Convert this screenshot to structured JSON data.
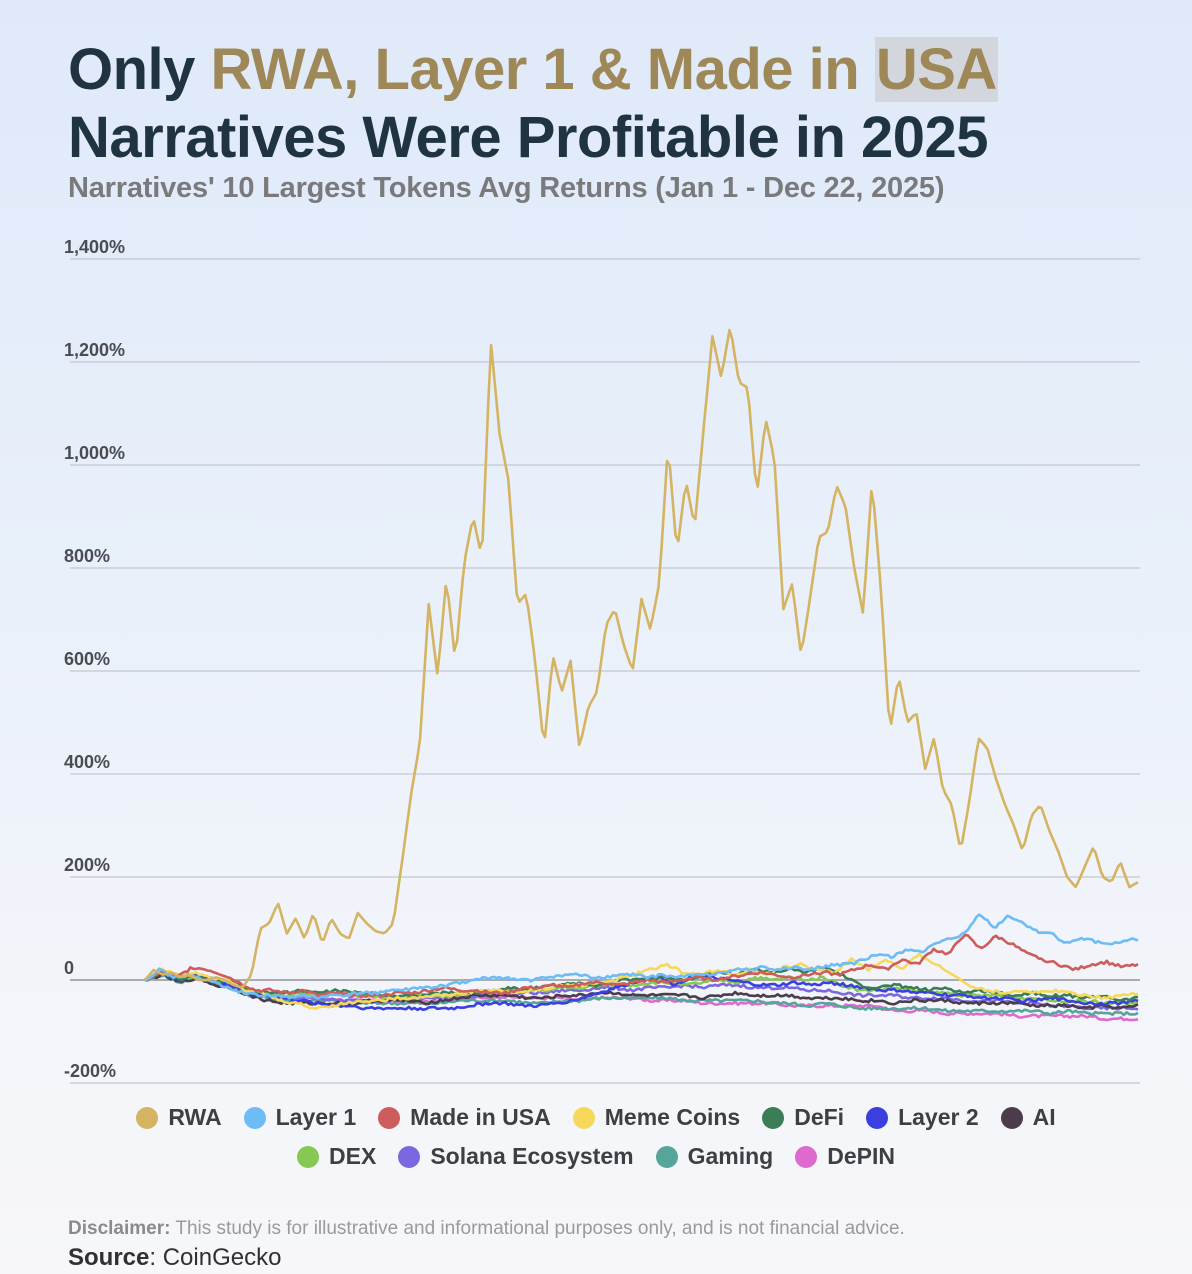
{
  "title": {
    "part1": "Only ",
    "highlight1": "RWA, Layer 1 & Made in ",
    "highlight2": "USA",
    "line2": "Narratives Were Profitable in 2025"
  },
  "subtitle": "Narratives' 10 Largest Tokens Avg Returns (Jan 1 - Dec 22, 2025)",
  "footer": {
    "disclaimer_label": "Disclaimer:",
    "disclaimer_text": " This study is for illustrative and informational purposes only, and is not financial advice.",
    "source_label": "Source",
    "source_text": ": CoinGecko"
  },
  "chart_data": {
    "type": "line",
    "title": "Only RWA, Layer 1 & Made in USA Narratives Were Profitable in 2025",
    "subtitle": "Narratives' 10 Largest Tokens Avg Returns (Jan 1 - Dec 22, 2025)",
    "xlabel": "",
    "ylabel": "",
    "x_range": [
      "Jan 1, 2025",
      "Dec 22, 2025"
    ],
    "ylim": [
      -200,
      1400
    ],
    "yticks": [
      -200,
      0,
      200,
      400,
      600,
      800,
      1000,
      1200,
      1400
    ],
    "ytick_labels": [
      "-200%",
      "0",
      "200%",
      "400%",
      "600%",
      "800%",
      "1,000%",
      "1,200%",
      "1,400%"
    ],
    "grid": true,
    "legend_position": "bottom",
    "series": [
      {
        "name": "RWA",
        "color": "#d4b462",
        "values": [
          0,
          20,
          10,
          15,
          5,
          10,
          0,
          0,
          5,
          0,
          -10,
          -15,
          10,
          100,
          110,
          150,
          90,
          120,
          80,
          130,
          70,
          120,
          90,
          80,
          130,
          110,
          95,
          90,
          110,
          230,
          360,
          460,
          730,
          590,
          780,
          620,
          810,
          900,
          820,
          1240,
          1060,
          970,
          730,
          750,
          620,
          450,
          630,
          560,
          620,
          450,
          530,
          560,
          690,
          720,
          650,
          600,
          740,
          680,
          770,
          1040,
          830,
          970,
          880,
          1070,
          1250,
          1170,
          1270,
          1160,
          1150,
          940,
          1090,
          1010,
          720,
          770,
          630,
          740,
          860,
          870,
          960,
          920,
          800,
          710,
          970,
          760,
          480,
          590,
          500,
          520,
          410,
          470,
          370,
          340,
          250,
          350,
          470,
          450,
          390,
          340,
          300,
          250,
          320,
          340,
          290,
          250,
          200,
          180,
          220,
          260,
          200,
          190,
          230,
          180,
          190
        ]
      },
      {
        "name": "Layer 1",
        "color": "#6ebcf5",
        "values": [
          0,
          20,
          5,
          10,
          0,
          -5,
          -20,
          -25,
          -30,
          -30,
          -35,
          -30,
          -35,
          -30,
          -30,
          -25,
          -25,
          -20,
          -20,
          -15,
          -15,
          -10,
          -5,
          0,
          5,
          5,
          0,
          0,
          5,
          10,
          10,
          5,
          5,
          10,
          10,
          5,
          10,
          5,
          10,
          10,
          15,
          20,
          20,
          25,
          20,
          25,
          20,
          25,
          30,
          30,
          40,
          50,
          45,
          60,
          55,
          70,
          80,
          90,
          130,
          100,
          125,
          110,
          95,
          90,
          70,
          80,
          75,
          70,
          75,
          80
        ]
      },
      {
        "name": "Made in USA",
        "color": "#cd5c5c",
        "values": [
          0,
          15,
          5,
          25,
          20,
          10,
          -5,
          -20,
          -20,
          -25,
          -20,
          -30,
          -25,
          -30,
          -30,
          -30,
          -25,
          -25,
          -20,
          -15,
          -20,
          -20,
          -25,
          -25,
          -15,
          -15,
          -10,
          -15,
          -5,
          -5,
          -10,
          -5,
          0,
          -5,
          0,
          5,
          0,
          5,
          10,
          15,
          10,
          5,
          10,
          15,
          10,
          20,
          30,
          20,
          40,
          30,
          60,
          50,
          90,
          60,
          85,
          70,
          50,
          40,
          30,
          20,
          30,
          35,
          25,
          30
        ]
      },
      {
        "name": "Meme Coins",
        "color": "#f6d95a",
        "values": [
          0,
          20,
          10,
          15,
          5,
          0,
          -20,
          -25,
          -40,
          -45,
          -55,
          -50,
          -45,
          -40,
          -40,
          -35,
          -35,
          -30,
          -30,
          -25,
          -20,
          -20,
          -25,
          -20,
          -15,
          -10,
          -10,
          -5,
          0,
          10,
          20,
          30,
          15,
          10,
          20,
          10,
          20,
          10,
          25,
          30,
          20,
          15,
          40,
          20,
          40,
          20,
          50,
          30,
          10,
          -10,
          -20,
          -25,
          -20,
          -25,
          -20,
          -25,
          -30,
          -35,
          -30,
          -25
        ]
      },
      {
        "name": "DeFi",
        "color": "#3b7d57",
        "values": [
          0,
          15,
          0,
          10,
          0,
          -5,
          -20,
          -25,
          -25,
          -20,
          -25,
          -20,
          -25,
          -25,
          -30,
          -30,
          -30,
          -25,
          -25,
          -25,
          -20,
          -15,
          -20,
          -10,
          -10,
          -5,
          -10,
          0,
          0,
          5,
          5,
          0,
          10,
          15,
          10,
          20,
          15,
          20,
          15,
          25,
          10,
          -10,
          -15,
          -10,
          -15,
          -20,
          -15,
          -25,
          -20,
          -25,
          -30,
          -25,
          -30,
          -30,
          -35,
          -30,
          -40,
          -35
        ]
      },
      {
        "name": "Layer 2",
        "color": "#3b3fe0",
        "values": [
          0,
          15,
          0,
          10,
          -5,
          -10,
          -25,
          -30,
          -35,
          -40,
          -45,
          -50,
          -50,
          -55,
          -55,
          -55,
          -55,
          -55,
          -55,
          -50,
          -45,
          -45,
          -50,
          -50,
          -45,
          -40,
          -30,
          -20,
          -10,
          0,
          5,
          -10,
          10,
          5,
          0,
          -5,
          -10,
          -10,
          -5,
          -10,
          -5,
          -10,
          -15,
          -20,
          -20,
          -25,
          -25,
          -30,
          -30,
          -35,
          -35,
          -40,
          -40,
          -35,
          -40,
          -45,
          -45,
          -45,
          -40
        ]
      },
      {
        "name": "AI",
        "color": "#4a3c4a",
        "values": [
          0,
          10,
          -5,
          5,
          -10,
          -15,
          -30,
          -40,
          -45,
          -45,
          -45,
          -45,
          -45,
          -40,
          -40,
          -40,
          -45,
          -40,
          -35,
          -30,
          -30,
          -30,
          -35,
          -35,
          -30,
          -30,
          -25,
          -25,
          -30,
          -30,
          -30,
          -30,
          -35,
          -30,
          -25,
          -30,
          -30,
          -30,
          -35,
          -35,
          -35,
          -40,
          -40,
          -45,
          -40,
          -40,
          -40,
          -45,
          -45,
          -45,
          -45,
          -50,
          -50,
          -50,
          -55,
          -50,
          -55,
          -50
        ]
      },
      {
        "name": "DEX",
        "color": "#86c952",
        "values": [
          0,
          15,
          0,
          5,
          -5,
          -10,
          -20,
          -25,
          -30,
          -25,
          -30,
          -25,
          -30,
          -30,
          -35,
          -35,
          -30,
          -30,
          -30,
          -25,
          -25,
          -20,
          -20,
          -20,
          -15,
          -15,
          -10,
          -10,
          -10,
          -5,
          -5,
          -10,
          -5,
          0,
          -5,
          5,
          0,
          5,
          0,
          5,
          -10,
          -20,
          -20,
          -15,
          -20,
          -25,
          -25,
          -30,
          -30,
          -30,
          -35,
          -35,
          -40,
          -40,
          -40,
          -45,
          -45,
          -45
        ]
      },
      {
        "name": "Solana Ecosystem",
        "color": "#7b68e0",
        "values": [
          0,
          15,
          0,
          5,
          -5,
          -10,
          -25,
          -30,
          -35,
          -35,
          -35,
          -40,
          -40,
          -40,
          -40,
          -40,
          -35,
          -35,
          -35,
          -30,
          -30,
          -25,
          -25,
          -25,
          -20,
          -20,
          -15,
          -15,
          -20,
          -15,
          -15,
          -10,
          -15,
          -10,
          -10,
          -15,
          -15,
          -15,
          -20,
          -20,
          -25,
          -30,
          -30,
          -30,
          -35,
          -35,
          -35,
          -40,
          -40,
          -40,
          -45,
          -45,
          -50,
          -50,
          -55,
          -55,
          -55,
          -55
        ]
      },
      {
        "name": "Gaming",
        "color": "#56a59a",
        "values": [
          0,
          10,
          -5,
          5,
          -5,
          -15,
          -30,
          -35,
          -40,
          -40,
          -40,
          -40,
          -45,
          -45,
          -45,
          -45,
          -45,
          -45,
          -40,
          -40,
          -40,
          -40,
          -45,
          -45,
          -40,
          -40,
          -35,
          -35,
          -35,
          -35,
          -35,
          -40,
          -40,
          -40,
          -40,
          -40,
          -45,
          -45,
          -50,
          -45,
          -50,
          -55,
          -55,
          -55,
          -55,
          -55,
          -60,
          -60,
          -60,
          -60,
          -60,
          -60,
          -65,
          -60,
          -65,
          -65,
          -65,
          -65
        ]
      },
      {
        "name": "DePIN",
        "color": "#de6ad0",
        "values": [
          0,
          15,
          0,
          5,
          -5,
          -10,
          -25,
          -30,
          -35,
          -35,
          -35,
          -40,
          -40,
          -40,
          -40,
          -40,
          -40,
          -40,
          -35,
          -35,
          -35,
          -30,
          -35,
          -35,
          -35,
          -40,
          -35,
          -35,
          -35,
          -40,
          -40,
          -40,
          -45,
          -45,
          -45,
          -45,
          -45,
          -50,
          -50,
          -50,
          -50,
          -50,
          -50,
          -60,
          -60,
          -60,
          -65,
          -65,
          -65,
          -65,
          -70,
          -70,
          -70,
          -70,
          -70,
          -75,
          -75,
          -75
        ]
      }
    ]
  }
}
